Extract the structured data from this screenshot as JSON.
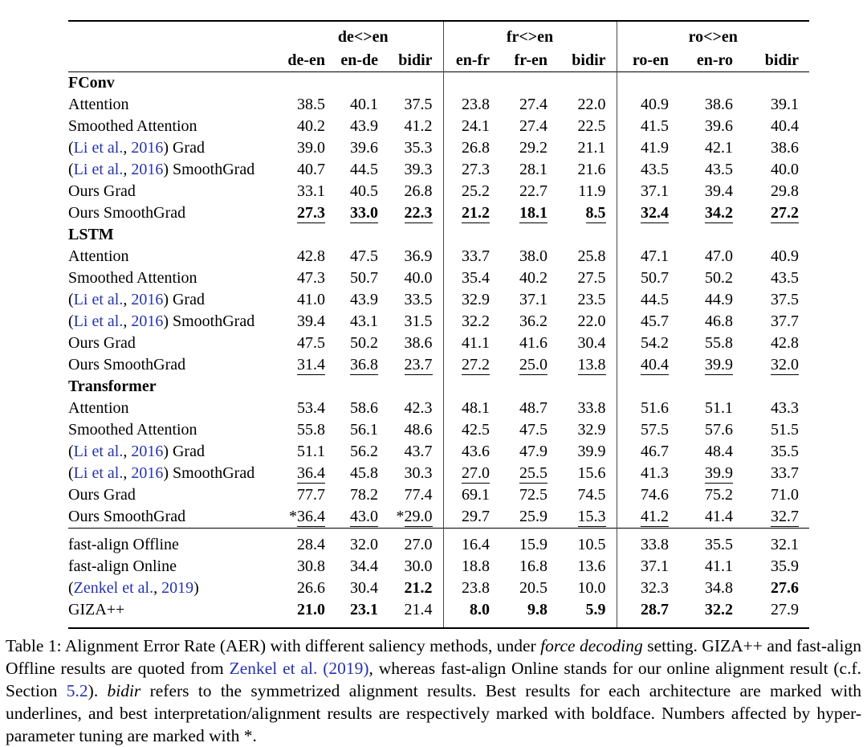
{
  "link_color": "#2533ad",
  "table": {
    "col_groups": [
      {
        "label": "de<>en"
      },
      {
        "label": "fr<>en"
      },
      {
        "label": "ro<>en"
      }
    ],
    "columns": [
      "de-en",
      "en-de",
      "bidir",
      "en-fr",
      "fr-en",
      "bidir",
      "ro-en",
      "en-ro",
      "bidir"
    ],
    "sections": [
      {
        "header": "FConv",
        "rows": [
          {
            "label": [
              {
                "t": "Attention"
              }
            ],
            "cells": [
              "38.5",
              "40.1",
              "37.5",
              "23.8",
              "27.4",
              "22.0",
              "40.9",
              "38.6",
              "39.1"
            ]
          },
          {
            "label": [
              {
                "t": "Smoothed Attention"
              }
            ],
            "cells": [
              "40.2",
              "43.9",
              "41.2",
              "24.1",
              "27.4",
              "22.5",
              "41.5",
              "39.6",
              "40.4"
            ]
          },
          {
            "label": [
              {
                "t": "("
              },
              {
                "t": "Li et al.",
                "link": true
              },
              {
                "t": ", "
              },
              {
                "t": "2016",
                "link": true
              },
              {
                "t": ") Grad"
              }
            ],
            "cells": [
              "39.0",
              "39.6",
              "35.3",
              "26.8",
              "29.2",
              "21.1",
              "41.9",
              "42.1",
              "38.6"
            ]
          },
          {
            "label": [
              {
                "t": "("
              },
              {
                "t": "Li et al.",
                "link": true
              },
              {
                "t": ", "
              },
              {
                "t": "2016",
                "link": true
              },
              {
                "t": ") SmoothGrad"
              }
            ],
            "cells": [
              "40.7",
              "44.5",
              "39.3",
              "27.3",
              "28.1",
              "21.6",
              "43.5",
              "43.5",
              "40.0"
            ]
          },
          {
            "label": [
              {
                "t": "Ours Grad"
              }
            ],
            "cells": [
              "33.1",
              "40.5",
              "26.8",
              "25.2",
              "22.7",
              "11.9",
              "37.1",
              "39.4",
              "29.8"
            ]
          },
          {
            "label": [
              {
                "t": "Ours SmoothGrad"
              }
            ],
            "cells": [
              {
                "v": "27.3",
                "b": true,
                "u": true
              },
              {
                "v": "33.0",
                "b": true,
                "u": true
              },
              {
                "v": "22.3",
                "b": true,
                "u": true
              },
              {
                "v": "21.2",
                "b": true,
                "u": true
              },
              {
                "v": "18.1",
                "b": true,
                "u": true
              },
              {
                "v": "8.5",
                "b": true,
                "u": true
              },
              {
                "v": "32.4",
                "b": true,
                "u": true
              },
              {
                "v": "34.2",
                "b": true,
                "u": true
              },
              {
                "v": "27.2",
                "b": true,
                "u": true
              }
            ]
          }
        ]
      },
      {
        "header": "LSTM",
        "rows": [
          {
            "label": [
              {
                "t": "Attention"
              }
            ],
            "cells": [
              "42.8",
              "47.5",
              "36.9",
              "33.7",
              "38.0",
              "25.8",
              "47.1",
              "47.0",
              "40.9"
            ]
          },
          {
            "label": [
              {
                "t": "Smoothed Attention"
              }
            ],
            "cells": [
              "47.3",
              "50.7",
              "40.0",
              "35.4",
              "40.2",
              "27.5",
              "50.7",
              "50.2",
              "43.5"
            ]
          },
          {
            "label": [
              {
                "t": "("
              },
              {
                "t": "Li et al.",
                "link": true
              },
              {
                "t": ", "
              },
              {
                "t": "2016",
                "link": true
              },
              {
                "t": ") Grad"
              }
            ],
            "cells": [
              "41.0",
              "43.9",
              "33.5",
              "32.9",
              "37.1",
              "23.5",
              "44.5",
              "44.9",
              "37.5"
            ]
          },
          {
            "label": [
              {
                "t": "("
              },
              {
                "t": "Li et al.",
                "link": true
              },
              {
                "t": ", "
              },
              {
                "t": "2016",
                "link": true
              },
              {
                "t": ") SmoothGrad"
              }
            ],
            "cells": [
              "39.4",
              "43.1",
              "31.5",
              "32.2",
              "36.2",
              "22.0",
              "45.7",
              "46.8",
              "37.7"
            ]
          },
          {
            "label": [
              {
                "t": "Ours Grad"
              }
            ],
            "cells": [
              "47.5",
              "50.2",
              "38.6",
              "41.1",
              "41.6",
              "30.4",
              "54.2",
              "55.8",
              "42.8"
            ]
          },
          {
            "label": [
              {
                "t": "Ours SmoothGrad"
              }
            ],
            "cells": [
              {
                "v": "31.4",
                "u": true
              },
              {
                "v": "36.8",
                "u": true
              },
              {
                "v": "23.7",
                "u": true
              },
              {
                "v": "27.2",
                "u": true
              },
              {
                "v": "25.0",
                "u": true
              },
              {
                "v": "13.8",
                "u": true
              },
              {
                "v": "40.4",
                "u": true
              },
              {
                "v": "39.9",
                "u": true
              },
              {
                "v": "32.0",
                "u": true
              }
            ]
          }
        ]
      },
      {
        "header": "Transformer",
        "rows": [
          {
            "label": [
              {
                "t": "Attention"
              }
            ],
            "cells": [
              "53.4",
              "58.6",
              "42.3",
              "48.1",
              "48.7",
              "33.8",
              "51.6",
              "51.1",
              "43.3"
            ]
          },
          {
            "label": [
              {
                "t": "Smoothed Attention"
              }
            ],
            "cells": [
              "55.8",
              "56.1",
              "48.6",
              "42.5",
              "47.5",
              "32.9",
              "57.5",
              "57.6",
              "51.5"
            ]
          },
          {
            "label": [
              {
                "t": "("
              },
              {
                "t": "Li et al.",
                "link": true
              },
              {
                "t": ", "
              },
              {
                "t": "2016",
                "link": true
              },
              {
                "t": ") Grad"
              }
            ],
            "cells": [
              "51.1",
              "56.2",
              "43.7",
              "43.6",
              "47.9",
              "39.9",
              "46.7",
              "48.4",
              "35.5"
            ]
          },
          {
            "label": [
              {
                "t": "("
              },
              {
                "t": "Li et al.",
                "link": true
              },
              {
                "t": ", "
              },
              {
                "t": "2016",
                "link": true
              },
              {
                "t": ") SmoothGrad"
              }
            ],
            "cells": [
              {
                "v": "36.4",
                "u": true
              },
              "45.8",
              "30.3",
              {
                "v": "27.0",
                "u": true
              },
              {
                "v": "25.5",
                "u": true
              },
              "15.6",
              "41.3",
              {
                "v": "39.9",
                "u": true
              },
              "33.7"
            ]
          },
          {
            "label": [
              {
                "t": "Ours Grad"
              }
            ],
            "cells": [
              "77.7",
              "78.2",
              "77.4",
              "69.1",
              "72.5",
              "74.5",
              "74.6",
              "75.2",
              "71.0"
            ]
          },
          {
            "label": [
              {
                "t": "Ours SmoothGrad"
              }
            ],
            "cells": [
              {
                "v": "36.4",
                "u": true,
                "star": true
              },
              {
                "v": "43.0",
                "u": true
              },
              {
                "v": "29.0",
                "u": true,
                "star": true
              },
              "29.7",
              "25.9",
              {
                "v": "15.3",
                "u": true
              },
              {
                "v": "41.2",
                "u": true
              },
              "41.4",
              {
                "v": "32.7",
                "u": true
              }
            ]
          }
        ]
      }
    ],
    "footer_rows": [
      {
        "label": [
          {
            "t": "fast-align Offline"
          }
        ],
        "cells": [
          "28.4",
          "32.0",
          "27.0",
          "16.4",
          "15.9",
          "10.5",
          "33.8",
          "35.5",
          "32.1"
        ]
      },
      {
        "label": [
          {
            "t": "fast-align Online"
          }
        ],
        "cells": [
          "30.8",
          "34.4",
          "30.0",
          "18.8",
          "16.8",
          "13.6",
          "37.1",
          "41.1",
          "35.9"
        ]
      },
      {
        "label": [
          {
            "t": "("
          },
          {
            "t": "Zenkel et al.",
            "link": true
          },
          {
            "t": ", "
          },
          {
            "t": "2019",
            "link": true
          },
          {
            "t": ")"
          }
        ],
        "cells": [
          "26.6",
          "30.4",
          {
            "v": "21.2",
            "b": true
          },
          "23.8",
          "20.5",
          "10.0",
          "32.3",
          "34.8",
          {
            "v": "27.6",
            "b": true
          }
        ]
      },
      {
        "label": [
          {
            "t": "GIZA++"
          }
        ],
        "cells": [
          {
            "v": "21.0",
            "b": true
          },
          {
            "v": "23.1",
            "b": true
          },
          "21.4",
          {
            "v": "8.0",
            "b": true
          },
          {
            "v": "9.8",
            "b": true
          },
          {
            "v": "5.9",
            "b": true
          },
          {
            "v": "28.7",
            "b": true
          },
          {
            "v": "32.2",
            "b": true
          },
          "27.9"
        ]
      }
    ]
  },
  "caption": {
    "segments": [
      {
        "t": "Table 1: Alignment Error Rate (AER) with different saliency methods, under "
      },
      {
        "t": "force decoding",
        "i": true
      },
      {
        "t": " setting. GIZA++ and fast-align Offline results are quoted from "
      },
      {
        "t": "Zenkel et al.",
        "link": true
      },
      {
        "t": " "
      },
      {
        "t": "(2019)",
        "link": true
      },
      {
        "t": ", whereas fast-align Online stands for our online alignment result (c.f. Section "
      },
      {
        "t": "5.2",
        "link": true
      },
      {
        "t": "). "
      },
      {
        "t": "bidir",
        "i": true
      },
      {
        "t": " refers to the symmetrized alignment results. Best results for each architecture are marked with underlines, and best interpretation/alignment results are respectively marked with boldface. Numbers affected by hyper-parameter tuning are marked with *."
      }
    ]
  }
}
